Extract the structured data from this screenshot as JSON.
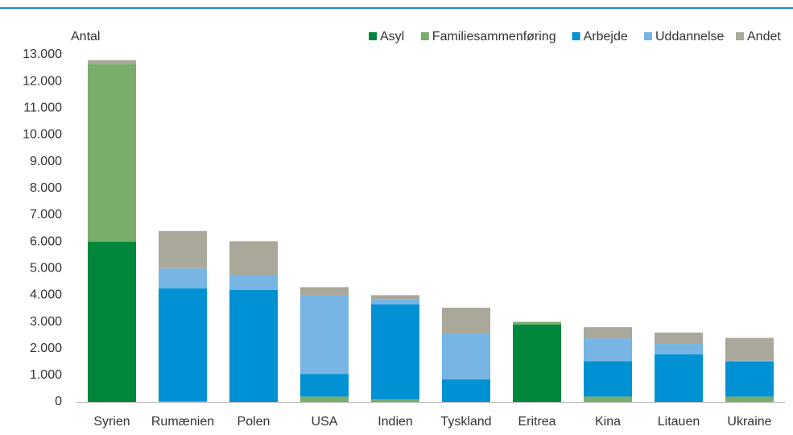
{
  "chart_data": {
    "type": "stacked_bar",
    "y_label": "Antal",
    "categories": [
      "Syrien",
      "Rumænien",
      "Polen",
      "USA",
      "Indien",
      "Tyskland",
      "Eritrea",
      "Kina",
      "Litauen",
      "Ukraine"
    ],
    "series": [
      {
        "name": "Asyl",
        "color": "#00873c",
        "values": [
          6000,
          0,
          0,
          0,
          0,
          0,
          2900,
          0,
          0,
          0
        ]
      },
      {
        "name": "Familiesammenføring",
        "color": "#78ad6a",
        "values": [
          6650,
          20,
          0,
          200,
          100,
          0,
          100,
          200,
          0,
          200
        ]
      },
      {
        "name": "Arbejde",
        "color": "#0090d4",
        "values": [
          0,
          4230,
          4200,
          850,
          3550,
          850,
          0,
          1330,
          1780,
          1320
        ]
      },
      {
        "name": "Uddannelse",
        "color": "#77b5e4",
        "values": [
          0,
          750,
          550,
          2950,
          200,
          1720,
          0,
          850,
          390,
          30
        ]
      },
      {
        "name": "Andet",
        "color": "#aaa89a",
        "values": [
          150,
          1400,
          1270,
          300,
          150,
          960,
          0,
          420,
          430,
          850
        ]
      }
    ],
    "ylim": [
      0,
      13000
    ],
    "yticks": [
      0,
      {
        "value": 1000,
        "label": "1.000"
      },
      {
        "value": 2000,
        "label": "2.000"
      },
      {
        "value": 3000,
        "label": "3.000"
      },
      {
        "value": 4000,
        "label": "4.000"
      },
      {
        "value": 5000,
        "label": "5.000"
      },
      {
        "value": 6000,
        "label": "6.000"
      },
      {
        "value": 7000,
        "label": "7.000"
      },
      {
        "value": 8000,
        "label": "8.000"
      },
      {
        "value": 9000,
        "label": "9.000"
      },
      {
        "value": 10000,
        "label": "10.000"
      },
      {
        "value": 11000,
        "label": "11.000"
      },
      {
        "value": 12000,
        "label": "12.000"
      },
      {
        "value": 13000,
        "label": "13.000"
      }
    ],
    "legend": "top-right"
  }
}
